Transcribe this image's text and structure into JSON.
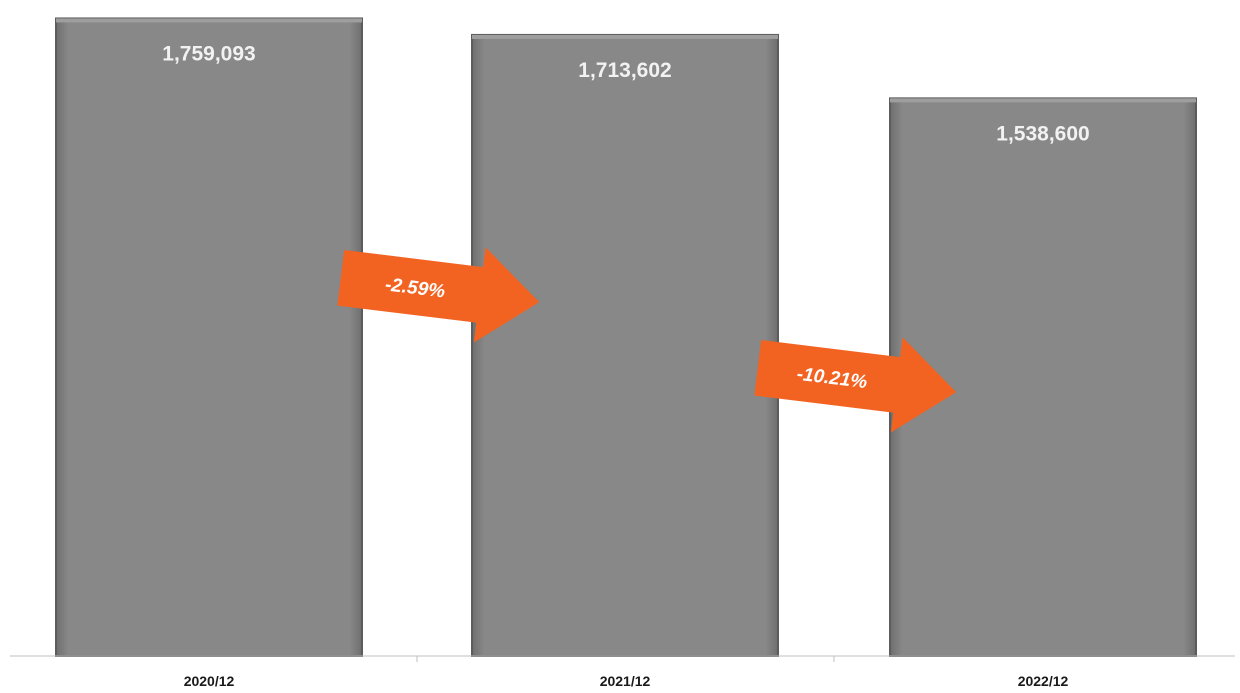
{
  "chart_data": {
    "type": "bar",
    "categories": [
      "2020/12",
      "2021/12",
      "2022/12"
    ],
    "values": [
      1759093,
      1713602,
      1538600
    ],
    "value_labels": [
      "1,759,093",
      "1,713,602",
      "1,538,600"
    ],
    "annotations": [
      {
        "from": "2020/12",
        "to": "2021/12",
        "text": "-2.59%"
      },
      {
        "from": "2021/12",
        "to": "2022/12",
        "text": "-10.21%"
      }
    ],
    "ylim": [
      0,
      1810000
    ],
    "grid": false,
    "legend": "none"
  },
  "colors": {
    "bar": "#878787",
    "bar_edge": "#5c5c5c",
    "arrow": "#f26322",
    "axis": "#bfbfbf"
  }
}
